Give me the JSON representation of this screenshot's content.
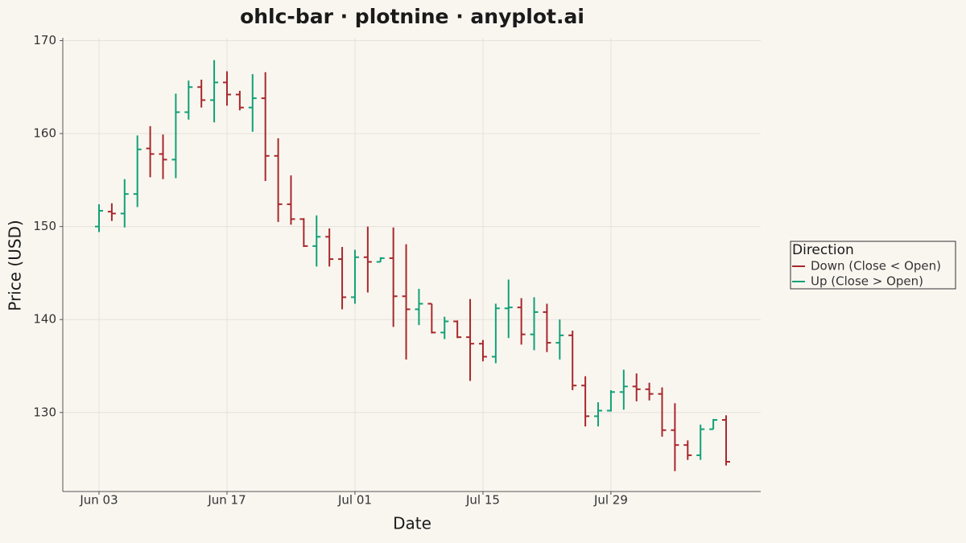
{
  "chart_data": {
    "type": "ohlc",
    "title": "ohlc-bar · plotnine · anyplot.ai",
    "x_label": "Date",
    "y_label": "Price (USD)",
    "categories": [
      "Jun 03",
      null,
      null,
      null,
      null,
      null,
      null,
      null,
      null,
      null,
      "Jun 17",
      null,
      null,
      null,
      null,
      null,
      null,
      null,
      null,
      null,
      "Jul 01",
      null,
      null,
      null,
      null,
      null,
      null,
      null,
      null,
      null,
      "Jul 15",
      null,
      null,
      null,
      null,
      null,
      null,
      null,
      null,
      null,
      "Jul 29",
      null,
      null,
      null,
      null,
      null,
      null,
      null,
      null,
      null
    ],
    "open": [
      150.0,
      151.6,
      151.4,
      153.5,
      158.4,
      157.8,
      157.2,
      162.3,
      165.0,
      163.6,
      165.5,
      164.2,
      162.8,
      163.8,
      157.6,
      152.4,
      150.8,
      147.9,
      148.9,
      146.5,
      142.4,
      146.7,
      146.2,
      146.6,
      142.5,
      141.1,
      141.7,
      138.6,
      139.8,
      138.1,
      137.4,
      136.0,
      141.2,
      141.3,
      138.4,
      140.8,
      137.5,
      138.3,
      132.9,
      129.6,
      130.2,
      132.2,
      132.8,
      132.5,
      132.0,
      128.1,
      126.5,
      125.4,
      128.2,
      129.2
    ],
    "high": [
      152.4,
      152.5,
      155.1,
      159.8,
      160.8,
      159.9,
      164.3,
      165.7,
      165.8,
      167.9,
      166.7,
      164.6,
      166.4,
      166.6,
      159.5,
      155.5,
      150.9,
      151.2,
      149.8,
      147.8,
      147.5,
      150.0,
      146.7,
      149.9,
      148.1,
      143.3,
      141.7,
      140.3,
      139.9,
      142.2,
      137.8,
      141.7,
      144.3,
      142.3,
      142.4,
      141.7,
      140.0,
      138.8,
      133.9,
      131.1,
      132.4,
      134.6,
      134.2,
      133.2,
      132.7,
      131.0,
      127.0,
      128.7,
      129.3,
      129.7
    ],
    "low": [
      149.4,
      150.6,
      149.9,
      152.1,
      155.3,
      155.1,
      155.2,
      161.5,
      162.8,
      161.2,
      163.0,
      162.5,
      160.2,
      154.9,
      150.5,
      150.2,
      147.8,
      145.7,
      145.7,
      141.1,
      141.7,
      142.9,
      146.2,
      139.2,
      135.7,
      139.4,
      138.5,
      137.9,
      138.0,
      133.4,
      135.5,
      135.3,
      138.0,
      137.3,
      136.7,
      136.5,
      135.7,
      132.4,
      128.5,
      128.5,
      130.1,
      130.3,
      131.2,
      131.3,
      127.4,
      123.7,
      124.9,
      124.9,
      128.2,
      124.3
    ],
    "close": [
      151.7,
      151.4,
      153.5,
      158.3,
      157.8,
      157.2,
      162.3,
      165.0,
      163.6,
      165.5,
      164.2,
      162.8,
      163.8,
      157.6,
      152.4,
      150.8,
      147.9,
      148.9,
      146.5,
      142.4,
      146.7,
      146.2,
      146.6,
      142.5,
      141.1,
      141.7,
      138.6,
      139.8,
      138.1,
      137.4,
      136.0,
      141.2,
      141.3,
      138.4,
      140.8,
      137.5,
      138.3,
      132.9,
      129.6,
      130.2,
      132.2,
      132.8,
      132.5,
      132.0,
      128.1,
      126.5,
      125.4,
      128.2,
      129.2,
      124.7
    ],
    "ylim": [
      121.5,
      170.3
    ],
    "yticks": [
      130,
      140,
      150,
      160,
      170
    ],
    "grid": true,
    "legend": {
      "title": "Direction",
      "position": "right",
      "entries": [
        {
          "name": "Down (Close < Open)",
          "color": "#a8282b"
        },
        {
          "name": "Up (Close > Open)",
          "color": "#12a077"
        }
      ]
    }
  }
}
